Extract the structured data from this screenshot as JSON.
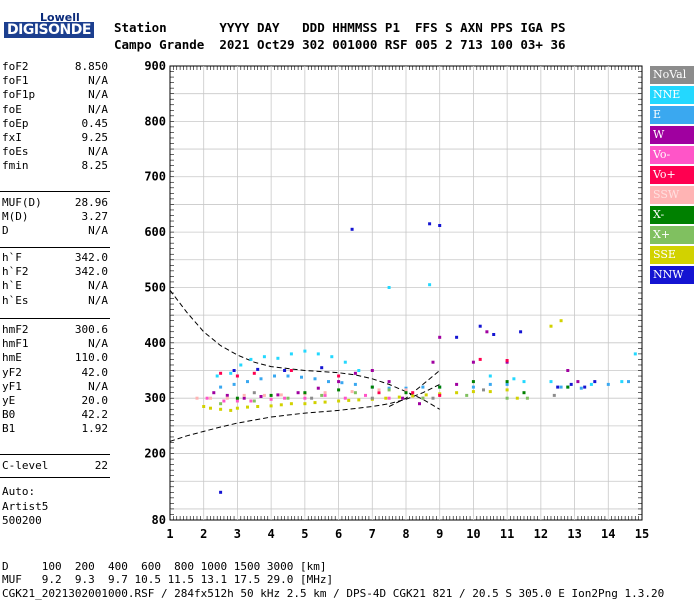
{
  "logo": {
    "top": "Lowell",
    "main": "DIGISONDE"
  },
  "header": {
    "row1": "Station       YYYY DAY   DDD HHMMSS P1  FFS S AXN PPS IGA PS",
    "row2": "Campo Grande  2021 Oct29 302 001000 RSF 005 2 713 100 03+ 36"
  },
  "params": {
    "group1": [
      {
        "name": "foF2",
        "value": "8.850"
      },
      {
        "name": "foF1",
        "value": "N/A"
      },
      {
        "name": "foF1p",
        "value": "N/A"
      },
      {
        "name": "foE",
        "value": "N/A"
      },
      {
        "name": "foEp",
        "value": "0.45"
      },
      {
        "name": "fxI",
        "value": "9.25"
      },
      {
        "name": "foEs",
        "value": "N/A"
      },
      {
        "name": "fmin",
        "value": "8.25"
      }
    ],
    "group2": [
      {
        "name": "MUF(D)",
        "value": "28.96"
      },
      {
        "name": "M(D)",
        "value": "3.27"
      },
      {
        "name": "D",
        "value": "N/A"
      }
    ],
    "group3": [
      {
        "name": "h`F",
        "value": "342.0"
      },
      {
        "name": "h`F2",
        "value": "342.0"
      },
      {
        "name": "h`E",
        "value": "N/A"
      },
      {
        "name": "h`Es",
        "value": "N/A"
      }
    ],
    "group4": [
      {
        "name": "hmF2",
        "value": "300.6"
      },
      {
        "name": "hmF1",
        "value": "N/A"
      },
      {
        "name": "hmE",
        "value": "110.0"
      },
      {
        "name": "yF2",
        "value": "42.0"
      },
      {
        "name": "yF1",
        "value": "N/A"
      },
      {
        "name": "yE",
        "value": "20.0"
      },
      {
        "name": "B0",
        "value": "42.2"
      },
      {
        "name": "B1",
        "value": "1.92"
      }
    ],
    "group5": [
      {
        "name": "C-level",
        "value": "22"
      }
    ],
    "auto_lines": [
      "Auto:",
      "Artist5",
      "500200"
    ]
  },
  "footer": {
    "line1": "D     100  200  400  600  800 1000 1500 3000 [km]",
    "line2": "MUF   9.2  9.3  9.7 10.5 11.5 13.1 17.5 29.0 [MHz]",
    "line3": "CGK21_2021302001000.RSF / 284fx512h 50 kHz 2.5 km / DPS-4D CGK21 821 / 20.5 S 305.0 E Ion2Png 1.3.20"
  },
  "colors": {
    "NoVal": "#8c8c8c",
    "NNE": "#23d8ff",
    "E": "#3aa8f0",
    "W": "#a000a0",
    "Vo-": "#ff55c8",
    "Vo+": "#ff0050",
    "SSW": "#ffb4b4",
    "X-": "#008000",
    "X+": "#80c060",
    "SSE": "#d2d200",
    "NNW": "#1414d2"
  },
  "chart_data": {
    "type": "scatter",
    "title": "",
    "xlabel": "",
    "ylabel": "",
    "xlim": [
      1,
      15
    ],
    "ylim": [
      80,
      900
    ],
    "x_ticks": [
      1,
      2,
      3,
      4,
      5,
      6,
      7,
      8,
      9,
      10,
      11,
      12,
      13,
      14,
      15
    ],
    "y_ticks": [
      80,
      200,
      300,
      400,
      500,
      600,
      700,
      800,
      900
    ],
    "legend": [
      "NoVal",
      "NNE",
      "E",
      "W",
      "Vo-",
      "Vo+",
      "SSW",
      "X-",
      "X+",
      "SSE",
      "NNW"
    ],
    "legend_position": "right",
    "series": [
      {
        "name": "SSE",
        "points": [
          [
            2.0,
            285
          ],
          [
            2.2,
            282
          ],
          [
            2.5,
            280
          ],
          [
            2.8,
            278
          ],
          [
            3.0,
            282
          ],
          [
            3.3,
            284
          ],
          [
            3.6,
            285
          ],
          [
            4.0,
            286
          ],
          [
            4.3,
            288
          ],
          [
            4.6,
            290
          ],
          [
            5.0,
            290
          ],
          [
            5.3,
            292
          ],
          [
            5.6,
            293
          ],
          [
            6.0,
            295
          ],
          [
            6.3,
            296
          ],
          [
            6.6,
            297
          ],
          [
            7.0,
            298
          ],
          [
            7.4,
            300
          ],
          [
            7.8,
            302
          ],
          [
            8.2,
            304
          ],
          [
            8.6,
            306
          ],
          [
            9.0,
            308
          ],
          [
            9.5,
            310
          ],
          [
            10.0,
            312
          ],
          [
            10.5,
            312
          ],
          [
            11.0,
            315
          ],
          [
            11.3,
            300
          ],
          [
            12.3,
            430
          ],
          [
            12.6,
            440
          ]
        ]
      },
      {
        "name": "NNE",
        "points": [
          [
            2.4,
            340
          ],
          [
            2.8,
            345
          ],
          [
            3.1,
            360
          ],
          [
            3.4,
            370
          ],
          [
            3.8,
            375
          ],
          [
            4.2,
            372
          ],
          [
            4.6,
            380
          ],
          [
            5.0,
            385
          ],
          [
            5.4,
            380
          ],
          [
            5.8,
            375
          ],
          [
            6.2,
            365
          ],
          [
            6.6,
            350
          ],
          [
            7.5,
            500
          ],
          [
            8.7,
            505
          ],
          [
            10.5,
            340
          ],
          [
            11.2,
            335
          ],
          [
            11.5,
            330
          ],
          [
            12.3,
            330
          ],
          [
            12.8,
            320
          ],
          [
            13.5,
            325
          ],
          [
            14.4,
            330
          ],
          [
            14.8,
            380
          ]
        ]
      },
      {
        "name": "E",
        "points": [
          [
            2.5,
            320
          ],
          [
            2.9,
            325
          ],
          [
            3.3,
            330
          ],
          [
            3.7,
            335
          ],
          [
            4.1,
            340
          ],
          [
            4.5,
            340
          ],
          [
            4.9,
            338
          ],
          [
            5.3,
            335
          ],
          [
            5.7,
            330
          ],
          [
            6.1,
            328
          ],
          [
            6.5,
            325
          ],
          [
            7.0,
            320
          ],
          [
            7.5,
            318
          ],
          [
            8.0,
            318
          ],
          [
            8.5,
            320
          ],
          [
            9.0,
            320
          ],
          [
            10.0,
            320
          ],
          [
            10.5,
            325
          ],
          [
            11.0,
            325
          ],
          [
            12.6,
            320
          ],
          [
            13.2,
            318
          ],
          [
            14.0,
            325
          ],
          [
            14.6,
            330
          ]
        ]
      },
      {
        "name": "W",
        "points": [
          [
            2.3,
            310
          ],
          [
            2.7,
            305
          ],
          [
            3.2,
            300
          ],
          [
            3.7,
            303
          ],
          [
            4.2,
            306
          ],
          [
            4.8,
            310
          ],
          [
            5.4,
            318
          ],
          [
            6.0,
            330
          ],
          [
            6.5,
            345
          ],
          [
            7.0,
            350
          ],
          [
            7.5,
            330
          ],
          [
            7.9,
            300
          ],
          [
            8.4,
            290
          ],
          [
            8.8,
            365
          ],
          [
            9.0,
            410
          ],
          [
            9.5,
            325
          ],
          [
            10.0,
            365
          ],
          [
            10.4,
            420
          ],
          [
            11.0,
            365
          ],
          [
            12.8,
            350
          ],
          [
            13.1,
            330
          ]
        ]
      },
      {
        "name": "Vo-",
        "points": [
          [
            2.1,
            300
          ],
          [
            2.6,
            295
          ],
          [
            3.0,
            295
          ],
          [
            3.4,
            295
          ],
          [
            4.0,
            298
          ],
          [
            4.4,
            300
          ],
          [
            5.0,
            300
          ],
          [
            5.6,
            305
          ],
          [
            6.2,
            300
          ],
          [
            6.8,
            305
          ],
          [
            7.5,
            300
          ],
          [
            8.5,
            300
          ]
        ]
      },
      {
        "name": "Vo+",
        "points": [
          [
            2.5,
            345
          ],
          [
            3.0,
            340
          ],
          [
            3.5,
            345
          ],
          [
            4.6,
            350
          ],
          [
            6.0,
            340
          ],
          [
            7.2,
            310
          ],
          [
            8.2,
            310
          ],
          [
            9.0,
            305
          ],
          [
            10.2,
            370
          ],
          [
            11.0,
            368
          ]
        ]
      },
      {
        "name": "SSW",
        "points": [
          [
            1.8,
            300
          ],
          [
            2.2,
            300
          ],
          [
            2.7,
            300
          ],
          [
            3.2,
            305
          ],
          [
            3.8,
            305
          ],
          [
            4.3,
            306
          ],
          [
            5.0,
            308
          ],
          [
            5.6,
            310
          ],
          [
            6.4,
            312
          ],
          [
            7.2,
            315
          ],
          [
            8.0,
            315
          ]
        ]
      },
      {
        "name": "X-",
        "points": [
          [
            3.0,
            300
          ],
          [
            4.0,
            305
          ],
          [
            5.0,
            310
          ],
          [
            6.0,
            315
          ],
          [
            7.0,
            320
          ],
          [
            8.0,
            310
          ],
          [
            9.0,
            320
          ],
          [
            10.0,
            330
          ],
          [
            11.0,
            330
          ],
          [
            11.5,
            310
          ],
          [
            12.8,
            320
          ]
        ]
      },
      {
        "name": "X+",
        "points": [
          [
            2.5,
            290
          ],
          [
            3.5,
            295
          ],
          [
            4.5,
            300
          ],
          [
            5.5,
            305
          ],
          [
            6.5,
            310
          ],
          [
            7.5,
            315
          ],
          [
            8.5,
            300
          ],
          [
            9.8,
            305
          ],
          [
            11.0,
            300
          ],
          [
            11.6,
            300
          ]
        ]
      },
      {
        "name": "NNW",
        "points": [
          [
            2.5,
            130
          ],
          [
            2.9,
            350
          ],
          [
            3.6,
            352
          ],
          [
            4.4,
            350
          ],
          [
            5.5,
            355
          ],
          [
            6.4,
            605
          ],
          [
            8.7,
            615
          ],
          [
            9.0,
            612
          ],
          [
            9.5,
            410
          ],
          [
            10.2,
            430
          ],
          [
            10.6,
            415
          ],
          [
            11.4,
            420
          ],
          [
            12.5,
            320
          ],
          [
            12.9,
            325
          ],
          [
            13.3,
            320
          ],
          [
            13.6,
            330
          ]
        ]
      },
      {
        "name": "NoVal",
        "points": [
          [
            3.5,
            310
          ],
          [
            5.2,
            300
          ],
          [
            7.0,
            300
          ],
          [
            8.8,
            300
          ],
          [
            10.3,
            315
          ],
          [
            12.4,
            305
          ]
        ]
      }
    ],
    "curves": [
      {
        "name": "upper",
        "points": [
          [
            1,
            495
          ],
          [
            1.5,
            455
          ],
          [
            2,
            420
          ],
          [
            2.5,
            395
          ],
          [
            3,
            378
          ],
          [
            3.5,
            365
          ],
          [
            4,
            357
          ],
          [
            5,
            350
          ],
          [
            6,
            346
          ],
          [
            6.5,
            342
          ],
          [
            7,
            335
          ],
          [
            7.5,
            325
          ],
          [
            8,
            312
          ],
          [
            8.5,
            298
          ],
          [
            9,
            280
          ]
        ]
      },
      {
        "name": "lower",
        "points": [
          [
            1,
            222
          ],
          [
            1.5,
            232
          ],
          [
            2,
            240
          ],
          [
            2.5,
            248
          ],
          [
            3,
            255
          ],
          [
            4,
            266
          ],
          [
            5,
            273
          ],
          [
            6,
            278
          ],
          [
            7,
            285
          ],
          [
            7.5,
            290
          ],
          [
            8,
            298
          ],
          [
            8.5,
            310
          ],
          [
            9,
            325
          ]
        ]
      },
      {
        "name": "mid",
        "points": [
          [
            7.5,
            285
          ],
          [
            8.0,
            300
          ],
          [
            8.5,
            325
          ],
          [
            9.0,
            350
          ]
        ]
      }
    ]
  }
}
